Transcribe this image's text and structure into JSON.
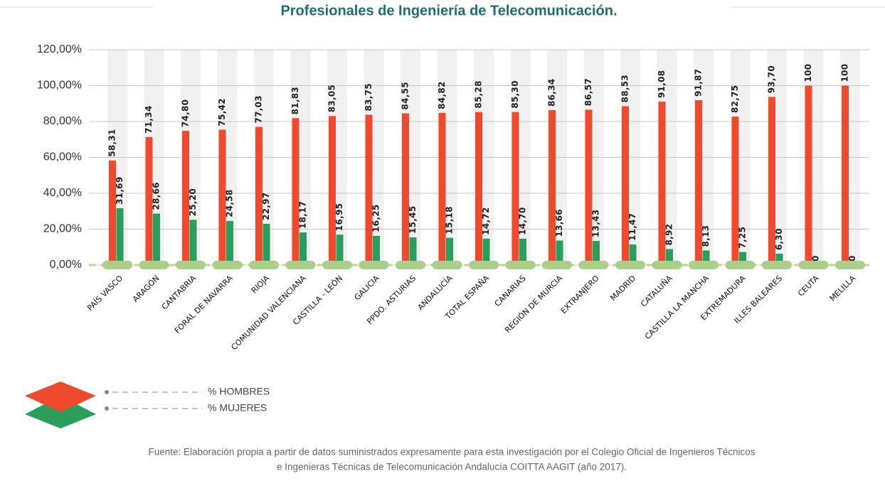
{
  "chart_data": {
    "type": "bar",
    "title": "Profesionales de Ingeniería de Telecomunicación.",
    "categories": [
      "PAÍS VASCO",
      "ARAGÓN",
      "CANTABRIA",
      "FORAL DE NAVARRA",
      "RIOJA",
      "COMUNIDAD VALENCIANA",
      "CASTILLA - LEÓN",
      "GALICIA",
      "PPDO. ASTURIAS",
      "ANDALUCÍA",
      "TOTAL ESPAÑA",
      "CANARIAS",
      "REGIÓN DE MURCIA",
      "EXTRANJERO",
      "MADRID",
      "CATALUÑA",
      "CASTILLA LA MANCHA",
      "EXTREMADURA",
      "ILLES BALEARES",
      "CEUTA",
      "MELILLA"
    ],
    "series": [
      {
        "name": "% HOMBRES",
        "color": "#ee4b2e",
        "values": [
          58.31,
          71.34,
          74.8,
          75.42,
          77.03,
          81.83,
          83.05,
          83.75,
          84.55,
          84.82,
          85.28,
          85.3,
          86.34,
          86.57,
          88.53,
          91.08,
          91.87,
          82.75,
          93.7,
          100,
          100
        ],
        "value_labels": [
          "58,31",
          "71,34",
          "74,80",
          "75,42",
          "77,03",
          "81,83",
          "83,05",
          "83,75",
          "84,55",
          "84,82",
          "85,28",
          "85,30",
          "86,34",
          "86,57",
          "88,53",
          "91,08",
          "91,87",
          "82,75",
          "93,70",
          "100",
          "100"
        ]
      },
      {
        "name": "% MUJERES",
        "color": "#2a9e5c",
        "values": [
          31.69,
          28.66,
          25.2,
          24.58,
          22.97,
          18.17,
          16.95,
          16.25,
          15.45,
          15.18,
          14.72,
          14.7,
          13.66,
          13.43,
          11.47,
          8.92,
          8.13,
          7.25,
          6.3,
          0,
          0
        ],
        "value_labels": [
          "31,69",
          "28,66",
          "25,20",
          "24,58",
          "22,97",
          "18,17",
          "16,95",
          "16,25",
          "15,45",
          "15,18",
          "14,72",
          "14,70",
          "13,66",
          "13,43",
          "11,47",
          "8,92",
          "8,13",
          "7,25",
          "6,30",
          "0",
          "0"
        ]
      }
    ],
    "ylim": [
      0,
      120
    ],
    "yticks": [
      {
        "value": 0,
        "label": "0,00%"
      },
      {
        "value": 20,
        "label": "20,00%"
      },
      {
        "value": 40,
        "label": "40,00%"
      },
      {
        "value": 60,
        "label": "60,00%"
      },
      {
        "value": 80,
        "label": "80,00%"
      },
      {
        "value": 100,
        "label": "100,00%"
      },
      {
        "value": 120,
        "label": "120,00%"
      }
    ],
    "grid": true,
    "source_lines": [
      "Fuente: Elaboración propia a partir de datos suministrados expresamente para esta investigación por el Colegio Oficial de Ingenieros Técnicos",
      "e Ingenieras Técnicas de Telecomunicación Andalucía COITTA AAGIT (año 2017)."
    ]
  }
}
